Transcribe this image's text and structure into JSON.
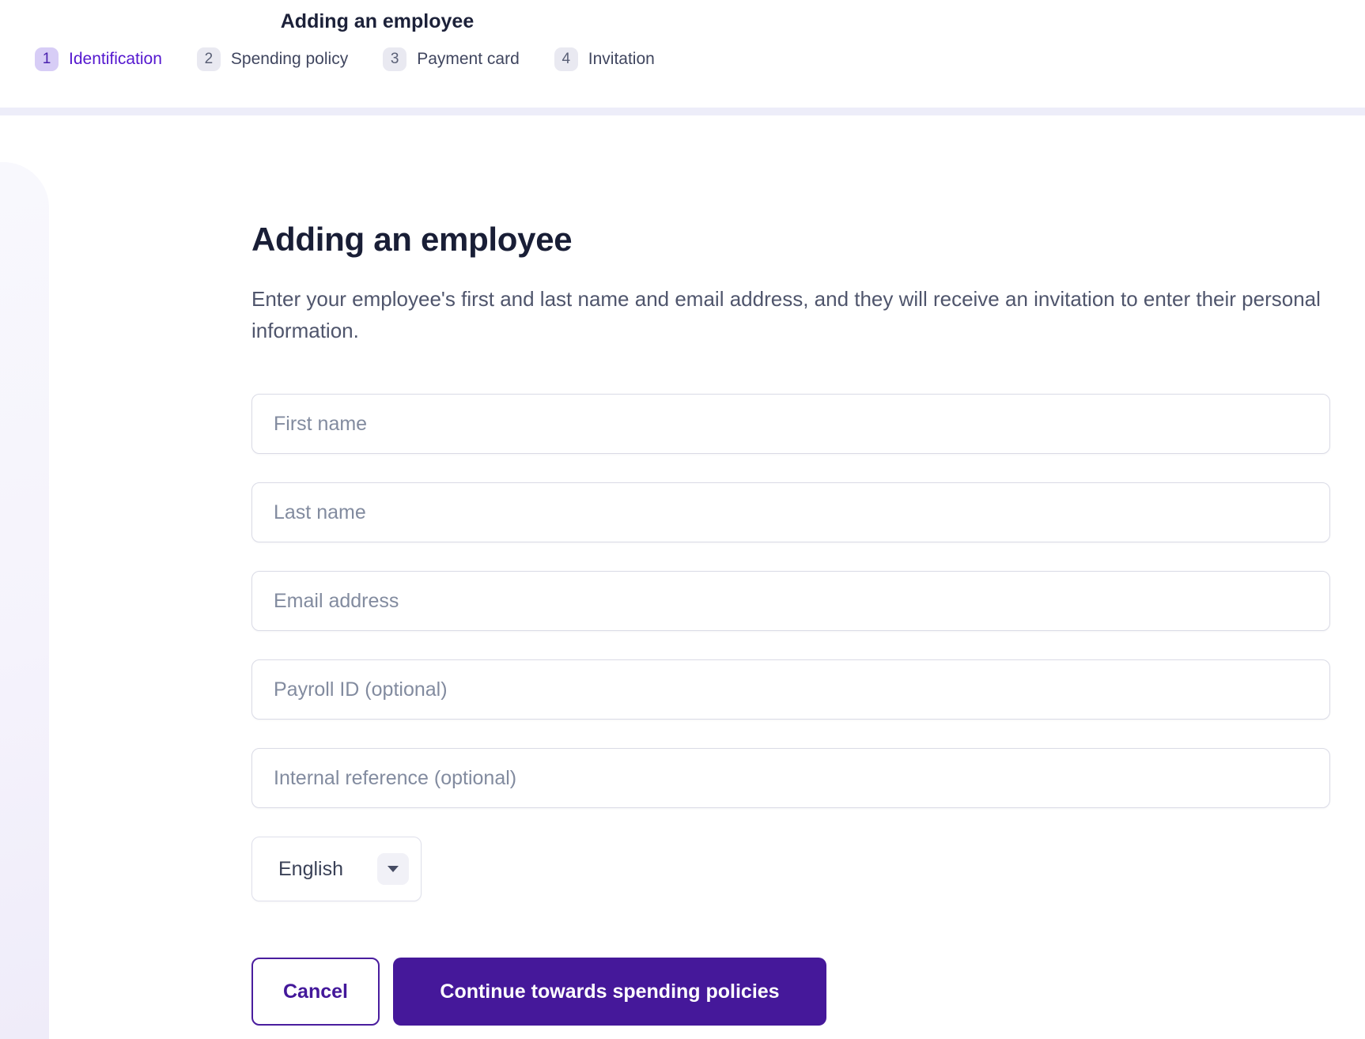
{
  "header": {
    "title": "Adding an employee",
    "steps": [
      {
        "number": "1",
        "label": "Identification",
        "active": true
      },
      {
        "number": "2",
        "label": "Spending policy",
        "active": false
      },
      {
        "number": "3",
        "label": "Payment card",
        "active": false
      },
      {
        "number": "4",
        "label": "Invitation",
        "active": false
      }
    ]
  },
  "main": {
    "title": "Adding an employee",
    "description": "Enter your employee's first and last name and email address, and they will receive an invitation to enter their personal information.",
    "fields": [
      {
        "name": "first-name",
        "placeholder": "First name",
        "value": ""
      },
      {
        "name": "last-name",
        "placeholder": "Last name",
        "value": ""
      },
      {
        "name": "email-address",
        "placeholder": "Email address",
        "value": ""
      },
      {
        "name": "payroll-id",
        "placeholder": "Payroll ID (optional)",
        "value": ""
      },
      {
        "name": "internal-reference",
        "placeholder": "Internal reference (optional)",
        "value": ""
      }
    ],
    "language_select": {
      "selected": "English",
      "caret_icon": "chevron-down-icon"
    },
    "buttons": {
      "cancel": "Cancel",
      "continue": "Continue towards spending policies"
    }
  },
  "colors": {
    "primary_purple": "#45189a",
    "accent_violet": "#5417cf",
    "step_active_badge_bg": "#d7cdf6",
    "step_inactive_badge_bg": "#e9e9f1",
    "header_divider": "#ededf9",
    "left_rail_bg": "#f6f4fc",
    "input_border": "#dadbe6",
    "placeholder_text": "#828b9f",
    "heading_text": "#191e36",
    "body_text": "#4f556c"
  }
}
